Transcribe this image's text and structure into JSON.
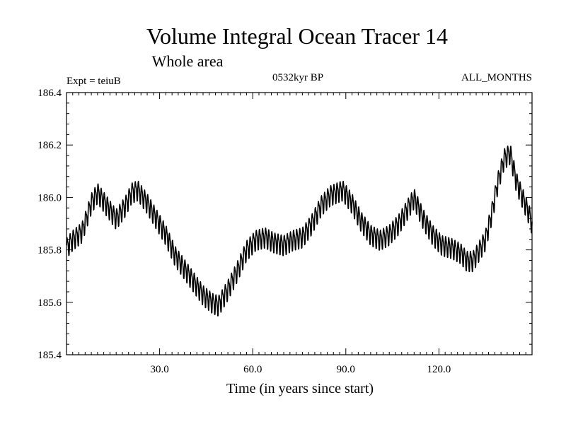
{
  "chart_data": {
    "type": "line",
    "title": "Volume Integral Ocean Tracer 14",
    "subtitle": "Whole area",
    "header_left": "Expt = teiuB",
    "header_center": "0532kyr BP",
    "header_right": "ALL_MONTHS",
    "xlabel": "Time (in years since start)",
    "ylabel": "",
    "xlim": [
      0,
      150
    ],
    "ylim": [
      185.4,
      186.4
    ],
    "x_ticks": [
      30,
      60,
      90,
      120
    ],
    "x_tick_labels": [
      "30.0",
      "60.0",
      "90.0",
      "120.0"
    ],
    "y_ticks": [
      185.4,
      185.6,
      185.8,
      186.0,
      186.2,
      186.4
    ],
    "y_tick_labels": [
      "185.4",
      "185.6",
      "185.8",
      "186.0",
      "186.2",
      "186.4"
    ],
    "grid": false,
    "series": [
      {
        "name": "Volume Integral Ocean Tracer 14",
        "annual_cycle_amplitude": 0.035,
        "trend": {
          "x": [
            0,
            2,
            5,
            8,
            10,
            13,
            16,
            19,
            21,
            23,
            26,
            29,
            32,
            35,
            38,
            41,
            44,
            47,
            49,
            52,
            55,
            58,
            61,
            64,
            67,
            70,
            73,
            76,
            79,
            82,
            85,
            87,
            89,
            92,
            95,
            98,
            101,
            104,
            107,
            110,
            112,
            115,
            118,
            121,
            124,
            127,
            129,
            131,
            133,
            135,
            137,
            139,
            141,
            143,
            145,
            147,
            149,
            150
          ],
          "y": [
            185.81,
            185.84,
            185.87,
            185.98,
            186.02,
            185.97,
            185.92,
            185.97,
            186.02,
            186.03,
            185.98,
            185.92,
            185.86,
            185.78,
            185.73,
            185.68,
            185.63,
            185.6,
            185.59,
            185.65,
            185.72,
            185.8,
            185.84,
            185.85,
            185.83,
            185.82,
            185.84,
            185.85,
            185.9,
            185.97,
            186.01,
            186.02,
            186.03,
            185.98,
            185.91,
            185.86,
            185.84,
            185.86,
            185.9,
            185.96,
            186.0,
            185.92,
            185.86,
            185.82,
            185.81,
            185.79,
            185.76,
            185.76,
            185.8,
            185.84,
            185.94,
            186.06,
            186.15,
            186.17,
            186.06,
            186.0,
            185.94,
            185.9
          ]
        }
      }
    ]
  }
}
